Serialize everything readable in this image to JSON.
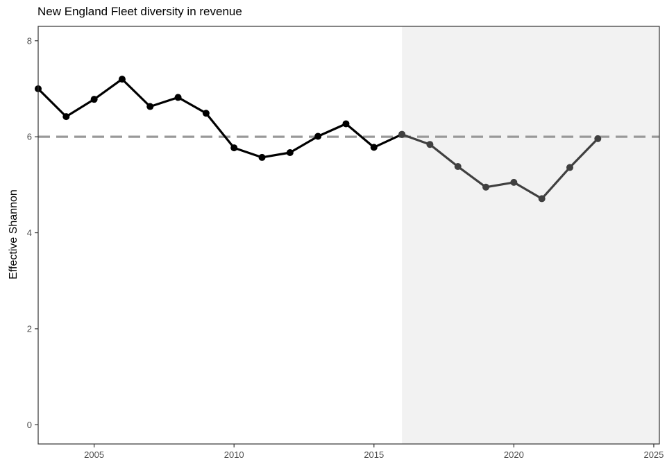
{
  "chart_data": {
    "type": "line",
    "title": "New England Fleet diversity in revenue",
    "xlabel": "",
    "ylabel": "Effective Shannon",
    "xlim": [
      2003,
      2025.2
    ],
    "ylim": [
      -0.4,
      8.3
    ],
    "x_ticks": [
      2005,
      2010,
      2015,
      2020,
      2025
    ],
    "y_ticks": [
      0,
      2,
      4,
      6,
      8
    ],
    "grid": false,
    "reference_line": {
      "y": 6.0,
      "style": "dashed",
      "color": "#999999"
    },
    "shaded_region": {
      "x_start": 2016,
      "x_end": 2025.2,
      "color": "#f2f2f2"
    },
    "series": [
      {
        "color": "#000000",
        "x": [
          2003,
          2004,
          2005,
          2006,
          2007,
          2008,
          2009,
          2010,
          2011,
          2012,
          2013,
          2014,
          2015,
          2016
        ],
        "y": [
          7.0,
          6.42,
          6.78,
          7.2,
          6.63,
          6.82,
          6.49,
          5.77,
          5.57,
          5.67,
          6.01,
          6.27,
          5.78,
          6.05
        ]
      },
      {
        "color": "#404040",
        "x": [
          2016,
          2017,
          2018,
          2019,
          2020,
          2021,
          2022,
          2023
        ],
        "y": [
          6.05,
          5.84,
          5.38,
          4.95,
          5.05,
          4.71,
          5.36,
          5.96
        ]
      }
    ]
  }
}
